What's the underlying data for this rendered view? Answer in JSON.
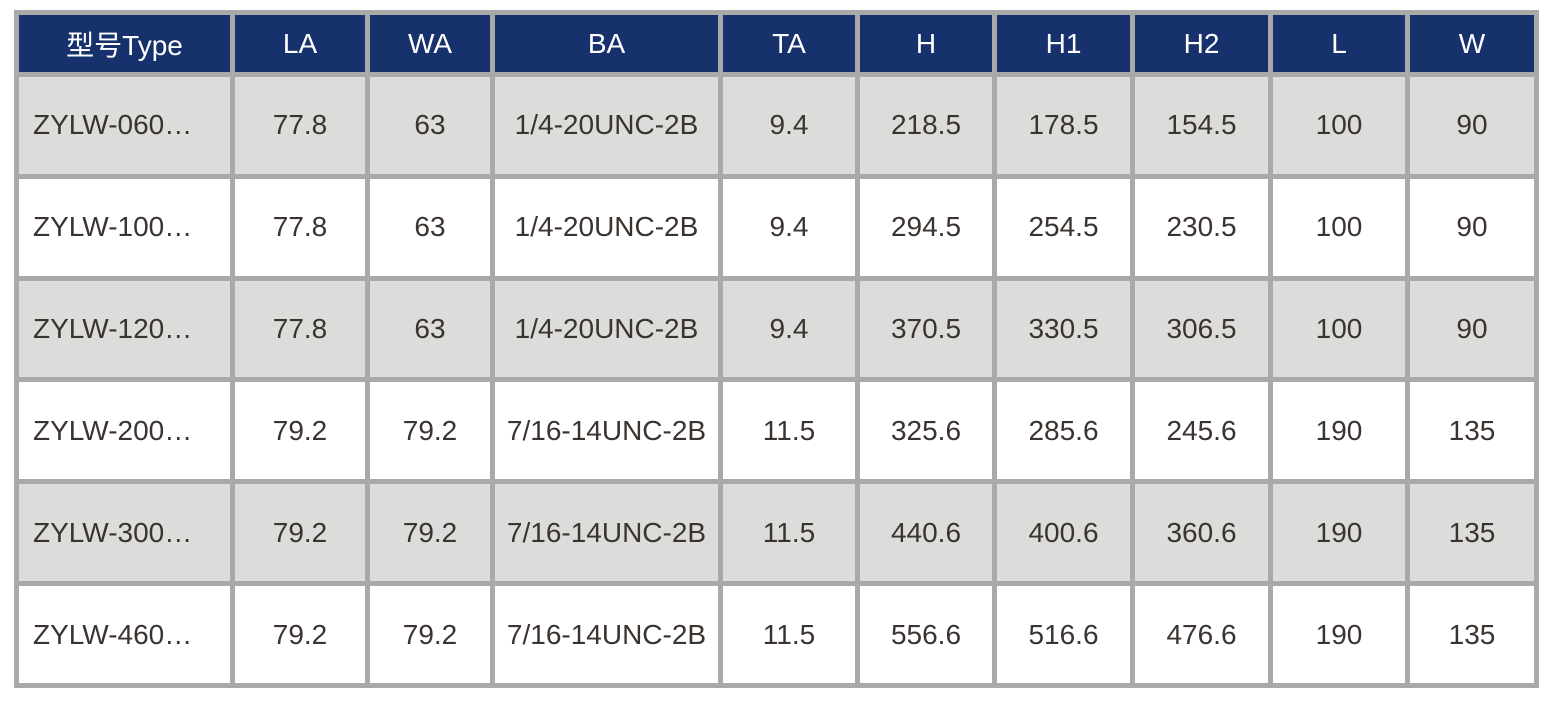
{
  "colors": {
    "header_background": "#16316B",
    "header_text": "#FFFFFF",
    "row_gray": "#DCDDDB",
    "row_white": "#FFFFFF",
    "grid_border": "#A9AAA8",
    "cell_text": "#3B3330"
  },
  "table": {
    "columns": [
      "型号Type",
      "LA",
      "WA",
      "BA",
      "TA",
      "H",
      "H1",
      "H2",
      "L",
      "W"
    ],
    "rows": [
      [
        "ZYLW-060…",
        "77.8",
        "63",
        "1/4-20UNC-2B",
        "9.4",
        "218.5",
        "178.5",
        "154.5",
        "100",
        "90"
      ],
      [
        "ZYLW-100…",
        "77.8",
        "63",
        "1/4-20UNC-2B",
        "9.4",
        "294.5",
        "254.5",
        "230.5",
        "100",
        "90"
      ],
      [
        "ZYLW-120…",
        "77.8",
        "63",
        "1/4-20UNC-2B",
        "9.4",
        "370.5",
        "330.5",
        "306.5",
        "100",
        "90"
      ],
      [
        "ZYLW-200…",
        "79.2",
        "79.2",
        "7/16-14UNC-2B",
        "11.5",
        "325.6",
        "285.6",
        "245.6",
        "190",
        "135"
      ],
      [
        "ZYLW-300…",
        "79.2",
        "79.2",
        "7/16-14UNC-2B",
        "11.5",
        "440.6",
        "400.6",
        "360.6",
        "190",
        "135"
      ],
      [
        "ZYLW-460…",
        "79.2",
        "79.2",
        "7/16-14UNC-2B",
        "11.5",
        "556.6",
        "516.6",
        "476.6",
        "190",
        "135"
      ]
    ]
  }
}
